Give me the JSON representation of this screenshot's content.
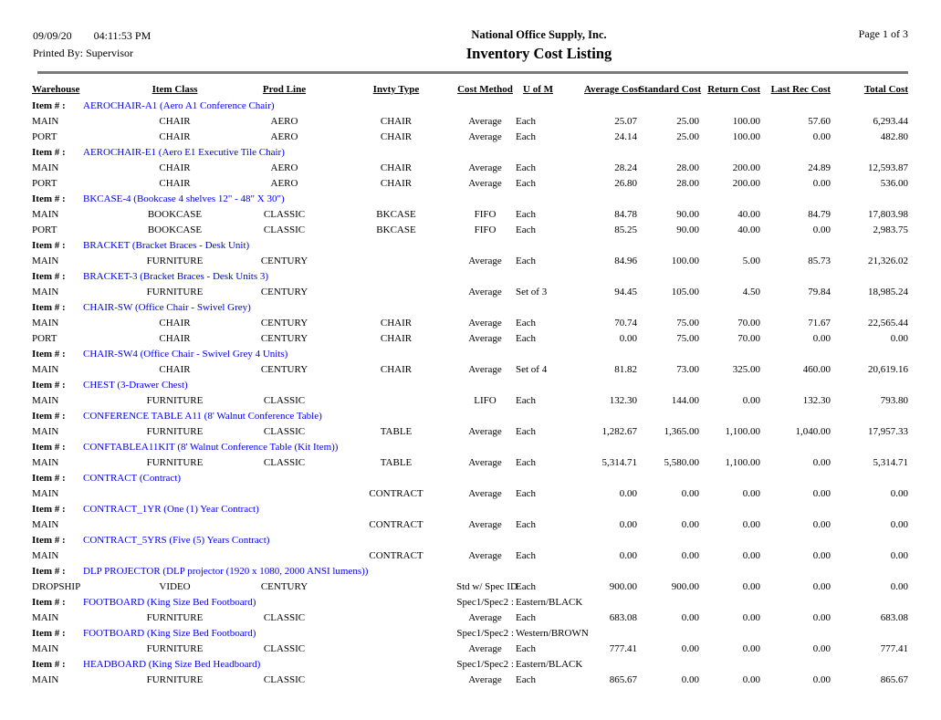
{
  "header": {
    "date": "09/09/20",
    "time": "04:11:53 PM",
    "printed_by": "Printed By: Supervisor",
    "company": "National Office Supply, Inc.",
    "title": "Inventory Cost Listing",
    "page": "Page 1 of 3"
  },
  "colors": {
    "item_text": "#0000EE",
    "rule": "#7a7a7a"
  },
  "columns": [
    "Warehouse",
    "Item Class",
    "Prod Line",
    "Invty Type",
    "Cost Method",
    "U of M",
    "Average Cost",
    "Standard Cost",
    "Return Cost",
    "Last Rec Cost",
    "Total Cost"
  ],
  "item_number_label": "Item # :",
  "groups": [
    {
      "item_label": "Item # :",
      "item": "AEROCHAIR-A1 (Aero A1 Conference Chair)",
      "spec_label": "",
      "spec_value": "",
      "rows": [
        {
          "warehouse": "MAIN",
          "item_class": "CHAIR",
          "prod_line": "AERO",
          "invty_type": "CHAIR",
          "cost_method": "Average",
          "uom": "Each",
          "average_cost": "25.07",
          "standard_cost": "25.00",
          "return_cost": "100.00",
          "last_rec_cost": "57.60",
          "total_cost": "6,293.44"
        },
        {
          "warehouse": "PORT",
          "item_class": "CHAIR",
          "prod_line": "AERO",
          "invty_type": "CHAIR",
          "cost_method": "Average",
          "uom": "Each",
          "average_cost": "24.14",
          "standard_cost": "25.00",
          "return_cost": "100.00",
          "last_rec_cost": "0.00",
          "total_cost": "482.80"
        }
      ]
    },
    {
      "item_label": "Item # :",
      "item": "AEROCHAIR-E1 (Aero E1 Executive Tile Chair)",
      "spec_label": "",
      "spec_value": "",
      "rows": [
        {
          "warehouse": "MAIN",
          "item_class": "CHAIR",
          "prod_line": "AERO",
          "invty_type": "CHAIR",
          "cost_method": "Average",
          "uom": "Each",
          "average_cost": "28.24",
          "standard_cost": "28.00",
          "return_cost": "200.00",
          "last_rec_cost": "24.89",
          "total_cost": "12,593.87"
        },
        {
          "warehouse": "PORT",
          "item_class": "CHAIR",
          "prod_line": "AERO",
          "invty_type": "CHAIR",
          "cost_method": "Average",
          "uom": "Each",
          "average_cost": "26.80",
          "standard_cost": "28.00",
          "return_cost": "200.00",
          "last_rec_cost": "0.00",
          "total_cost": "536.00"
        }
      ]
    },
    {
      "item_label": "Item # :",
      "item": "BKCASE-4 (Bookcase 4 shelves 12\" - 48\" X 30\")",
      "spec_label": "",
      "spec_value": "",
      "rows": [
        {
          "warehouse": "MAIN",
          "item_class": "BOOKCASE",
          "prod_line": "CLASSIC",
          "invty_type": "BKCASE",
          "cost_method": "FIFO",
          "uom": "Each",
          "average_cost": "84.78",
          "standard_cost": "90.00",
          "return_cost": "40.00",
          "last_rec_cost": "84.79",
          "total_cost": "17,803.98"
        },
        {
          "warehouse": "PORT",
          "item_class": "BOOKCASE",
          "prod_line": "CLASSIC",
          "invty_type": "BKCASE",
          "cost_method": "FIFO",
          "uom": "Each",
          "average_cost": "85.25",
          "standard_cost": "90.00",
          "return_cost": "40.00",
          "last_rec_cost": "0.00",
          "total_cost": "2,983.75"
        }
      ]
    },
    {
      "item_label": "Item # :",
      "item": "BRACKET (Bracket Braces - Desk Unit)",
      "spec_label": "",
      "spec_value": "",
      "rows": [
        {
          "warehouse": "MAIN",
          "item_class": "FURNITURE",
          "prod_line": "CENTURY",
          "invty_type": "",
          "cost_method": "Average",
          "uom": "Each",
          "average_cost": "84.96",
          "standard_cost": "100.00",
          "return_cost": "5.00",
          "last_rec_cost": "85.73",
          "total_cost": "21,326.02"
        }
      ]
    },
    {
      "item_label": "Item # :",
      "item": "BRACKET-3 (Bracket Braces - Desk Units 3)",
      "spec_label": "",
      "spec_value": "",
      "rows": [
        {
          "warehouse": "MAIN",
          "item_class": "FURNITURE",
          "prod_line": "CENTURY",
          "invty_type": "",
          "cost_method": "Average",
          "uom": "Set of 3",
          "average_cost": "94.45",
          "standard_cost": "105.00",
          "return_cost": "4.50",
          "last_rec_cost": "79.84",
          "total_cost": "18,985.24"
        }
      ]
    },
    {
      "item_label": "Item # :",
      "item": "CHAIR-SW (Office Chair - Swivel Grey)",
      "spec_label": "",
      "spec_value": "",
      "rows": [
        {
          "warehouse": "MAIN",
          "item_class": "CHAIR",
          "prod_line": "CENTURY",
          "invty_type": "CHAIR",
          "cost_method": "Average",
          "uom": "Each",
          "average_cost": "70.74",
          "standard_cost": "75.00",
          "return_cost": "70.00",
          "last_rec_cost": "71.67",
          "total_cost": "22,565.44"
        },
        {
          "warehouse": "PORT",
          "item_class": "CHAIR",
          "prod_line": "CENTURY",
          "invty_type": "CHAIR",
          "cost_method": "Average",
          "uom": "Each",
          "average_cost": "0.00",
          "standard_cost": "75.00",
          "return_cost": "70.00",
          "last_rec_cost": "0.00",
          "total_cost": "0.00"
        }
      ]
    },
    {
      "item_label": "Item # :",
      "item": "CHAIR-SW4 (Office Chair - Swivel Grey 4 Units)",
      "spec_label": "",
      "spec_value": "",
      "rows": [
        {
          "warehouse": "MAIN",
          "item_class": "CHAIR",
          "prod_line": "CENTURY",
          "invty_type": "CHAIR",
          "cost_method": "Average",
          "uom": "Set of 4",
          "average_cost": "81.82",
          "standard_cost": "73.00",
          "return_cost": "325.00",
          "last_rec_cost": "460.00",
          "total_cost": "20,619.16"
        }
      ]
    },
    {
      "item_label": "Item # :",
      "item": "CHEST (3-Drawer Chest)",
      "spec_label": "",
      "spec_value": "",
      "rows": [
        {
          "warehouse": "MAIN",
          "item_class": "FURNITURE",
          "prod_line": "CLASSIC",
          "invty_type": "",
          "cost_method": "LIFO",
          "uom": "Each",
          "average_cost": "132.30",
          "standard_cost": "144.00",
          "return_cost": "0.00",
          "last_rec_cost": "132.30",
          "total_cost": "793.80"
        }
      ]
    },
    {
      "item_label": "Item # :",
      "item": "CONFERENCE TABLE A11 (8' Walnut Conference Table)",
      "spec_label": "",
      "spec_value": "",
      "rows": [
        {
          "warehouse": "MAIN",
          "item_class": "FURNITURE",
          "prod_line": "CLASSIC",
          "invty_type": "TABLE",
          "cost_method": "Average",
          "uom": "Each",
          "average_cost": "1,282.67",
          "standard_cost": "1,365.00",
          "return_cost": "1,100.00",
          "last_rec_cost": "1,040.00",
          "total_cost": "17,957.33"
        }
      ]
    },
    {
      "item_label": "Item # :",
      "item": "CONFTABLEA11KIT (8' Walnut Conference Table (Kit Item))",
      "spec_label": "",
      "spec_value": "",
      "rows": [
        {
          "warehouse": "MAIN",
          "item_class": "FURNITURE",
          "prod_line": "CLASSIC",
          "invty_type": "TABLE",
          "cost_method": "Average",
          "uom": "Each",
          "average_cost": "5,314.71",
          "standard_cost": "5,580.00",
          "return_cost": "1,100.00",
          "last_rec_cost": "0.00",
          "total_cost": "5,314.71"
        }
      ]
    },
    {
      "item_label": "Item # :",
      "item": "CONTRACT (Contract)",
      "spec_label": "",
      "spec_value": "",
      "rows": [
        {
          "warehouse": "MAIN",
          "item_class": "",
          "prod_line": "",
          "invty_type": "CONTRACT",
          "cost_method": "Average",
          "uom": "Each",
          "average_cost": "0.00",
          "standard_cost": "0.00",
          "return_cost": "0.00",
          "last_rec_cost": "0.00",
          "total_cost": "0.00"
        }
      ]
    },
    {
      "item_label": "Item # :",
      "item": "CONTRACT_1YR (One (1) Year Contract)",
      "spec_label": "",
      "spec_value": "",
      "rows": [
        {
          "warehouse": "MAIN",
          "item_class": "",
          "prod_line": "",
          "invty_type": "CONTRACT",
          "cost_method": "Average",
          "uom": "Each",
          "average_cost": "0.00",
          "standard_cost": "0.00",
          "return_cost": "0.00",
          "last_rec_cost": "0.00",
          "total_cost": "0.00"
        }
      ]
    },
    {
      "item_label": "Item # :",
      "item": "CONTRACT_5YRS (Five (5) Years Contract)",
      "spec_label": "",
      "spec_value": "",
      "rows": [
        {
          "warehouse": "MAIN",
          "item_class": "",
          "prod_line": "",
          "invty_type": "CONTRACT",
          "cost_method": "Average",
          "uom": "Each",
          "average_cost": "0.00",
          "standard_cost": "0.00",
          "return_cost": "0.00",
          "last_rec_cost": "0.00",
          "total_cost": "0.00"
        }
      ]
    },
    {
      "item_label": "Item # :",
      "item": "DLP PROJECTOR (DLP projector (1920 x 1080, 2000 ANSI lumens))",
      "spec_label": "",
      "spec_value": "",
      "rows": [
        {
          "warehouse": "DROPSHIP",
          "item_class": "VIDEO",
          "prod_line": "CENTURY",
          "invty_type": "",
          "cost_method": "Std w/ Spec ID",
          "uom": "Each",
          "average_cost": "900.00",
          "standard_cost": "900.00",
          "return_cost": "0.00",
          "last_rec_cost": "0.00",
          "total_cost": "0.00"
        }
      ]
    },
    {
      "item_label": "Item # :",
      "item": "FOOTBOARD (King Size Bed Footboard)",
      "spec_label": "Spec1/Spec2 :",
      "spec_value": "Eastern/BLACK",
      "rows": [
        {
          "warehouse": "MAIN",
          "item_class": "FURNITURE",
          "prod_line": "CLASSIC",
          "invty_type": "",
          "cost_method": "Average",
          "uom": "Each",
          "average_cost": "683.08",
          "standard_cost": "0.00",
          "return_cost": "0.00",
          "last_rec_cost": "0.00",
          "total_cost": "683.08"
        }
      ]
    },
    {
      "item_label": "Item # :",
      "item": "FOOTBOARD (King Size Bed Footboard)",
      "spec_label": "Spec1/Spec2 :",
      "spec_value": "Western/BROWN",
      "rows": [
        {
          "warehouse": "MAIN",
          "item_class": "FURNITURE",
          "prod_line": "CLASSIC",
          "invty_type": "",
          "cost_method": "Average",
          "uom": "Each",
          "average_cost": "777.41",
          "standard_cost": "0.00",
          "return_cost": "0.00",
          "last_rec_cost": "0.00",
          "total_cost": "777.41"
        }
      ]
    },
    {
      "item_label": "Item # :",
      "item": "HEADBOARD (King Size Bed Headboard)",
      "spec_label": "Spec1/Spec2 :",
      "spec_value": "Eastern/BLACK",
      "rows": [
        {
          "warehouse": "MAIN",
          "item_class": "FURNITURE",
          "prod_line": "CLASSIC",
          "invty_type": "",
          "cost_method": "Average",
          "uom": "Each",
          "average_cost": "865.67",
          "standard_cost": "0.00",
          "return_cost": "0.00",
          "last_rec_cost": "0.00",
          "total_cost": "865.67"
        }
      ]
    }
  ]
}
